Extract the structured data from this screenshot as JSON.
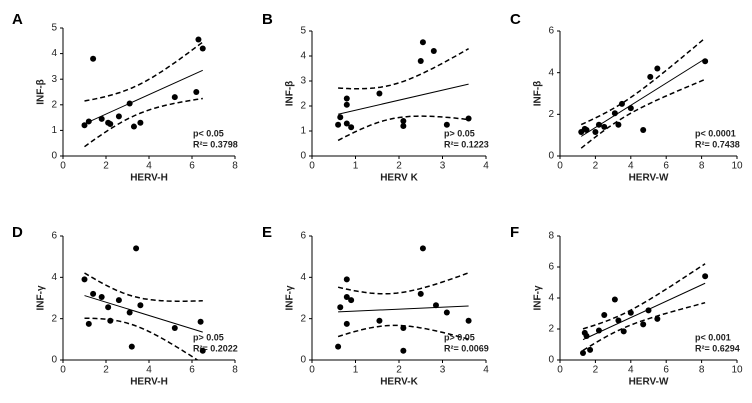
{
  "chart_data": [
    {
      "type": "scatter",
      "panel": "A",
      "xlabel": "HERV-H",
      "ylabel": "INF-β",
      "annotations": [
        "p< 0.05",
        "R²= 0.3798"
      ],
      "x": [
        1.0,
        1.2,
        1.4,
        1.8,
        2.1,
        2.2,
        2.6,
        3.1,
        3.3,
        3.6,
        5.2,
        6.2,
        6.3,
        6.5
      ],
      "y": [
        1.2,
        1.35,
        3.8,
        1.45,
        1.3,
        1.25,
        1.55,
        2.05,
        1.15,
        1.3,
        2.3,
        2.5,
        4.55,
        4.2
      ],
      "xlim": [
        0,
        8
      ],
      "ylim": [
        0,
        5
      ],
      "xticks": [
        0,
        2,
        4,
        6,
        8
      ],
      "yticks": [
        0,
        1,
        2,
        3,
        4,
        5
      ],
      "color": "#000000"
    },
    {
      "type": "scatter",
      "panel": "B",
      "xlabel": "HERV K",
      "ylabel": "INF-β",
      "annotations": [
        "p> 0.05",
        "R²= 0.1223"
      ],
      "x": [
        0.6,
        0.65,
        0.8,
        0.8,
        0.8,
        0.9,
        1.55,
        2.1,
        2.1,
        2.5,
        2.55,
        2.8,
        3.1,
        3.6
      ],
      "y": [
        1.25,
        1.55,
        2.05,
        2.3,
        1.3,
        1.15,
        2.5,
        1.4,
        1.2,
        3.8,
        4.55,
        4.2,
        1.25,
        1.5
      ],
      "xlim": [
        0,
        4
      ],
      "ylim": [
        0,
        5
      ],
      "xticks": [
        0,
        1,
        2,
        3,
        4
      ],
      "yticks": [
        0,
        1,
        2,
        3,
        4,
        5
      ],
      "color": "#000000"
    },
    {
      "type": "scatter",
      "panel": "C",
      "xlabel": "HERV-W",
      "ylabel": "INF-β",
      "annotations": [
        "p< 0.0001",
        "R²= 0.7438"
      ],
      "x": [
        1.2,
        1.4,
        1.5,
        2.0,
        2.2,
        2.5,
        3.1,
        3.3,
        3.5,
        4.0,
        4.7,
        5.1,
        5.5,
        8.2
      ],
      "y": [
        1.15,
        1.3,
        1.25,
        1.15,
        1.5,
        1.4,
        2.05,
        1.5,
        2.5,
        2.3,
        1.25,
        3.8,
        4.2,
        4.55
      ],
      "xlim": [
        0,
        10
      ],
      "ylim": [
        0,
        6
      ],
      "xticks": [
        0,
        2,
        4,
        6,
        8,
        10
      ],
      "yticks": [
        0,
        2,
        4,
        6
      ],
      "color": "#000000"
    },
    {
      "type": "scatter",
      "panel": "D",
      "xlabel": "HERV-H",
      "ylabel": "INF-γ",
      "annotations": [
        "p> 0.05",
        "R²= 0.2022"
      ],
      "x": [
        1.0,
        1.2,
        1.4,
        1.8,
        2.1,
        2.2,
        2.6,
        3.1,
        3.2,
        3.4,
        3.6,
        5.2,
        6.4,
        6.5
      ],
      "y": [
        3.9,
        1.75,
        3.2,
        3.05,
        2.55,
        1.9,
        2.9,
        2.3,
        0.65,
        5.4,
        2.65,
        1.55,
        1.85,
        0.45
      ],
      "xlim": [
        0,
        8
      ],
      "ylim": [
        0,
        6
      ],
      "xticks": [
        0,
        2,
        4,
        6,
        8
      ],
      "yticks": [
        0,
        2,
        4,
        6
      ],
      "color": "#000000"
    },
    {
      "type": "scatter",
      "panel": "E",
      "xlabel": "HERV-K",
      "ylabel": "INF-γ",
      "annotations": [
        "p> 0.05",
        "R²= 0.0069"
      ],
      "x": [
        0.6,
        0.65,
        0.8,
        0.8,
        0.8,
        0.9,
        1.55,
        2.1,
        2.1,
        2.5,
        2.55,
        2.85,
        3.1,
        3.6
      ],
      "y": [
        0.65,
        2.55,
        1.75,
        3.9,
        3.05,
        2.9,
        1.9,
        1.55,
        0.45,
        3.2,
        5.4,
        2.65,
        2.3,
        1.9
      ],
      "xlim": [
        0,
        4
      ],
      "ylim": [
        0,
        6
      ],
      "xticks": [
        0,
        1,
        2,
        3,
        4
      ],
      "yticks": [
        0,
        2,
        4,
        6
      ],
      "color": "#000000"
    },
    {
      "type": "scatter",
      "panel": "F",
      "xlabel": "HERV-W",
      "ylabel": "INF-γ",
      "annotations": [
        "p< 0.001",
        "R²= 0.6294"
      ],
      "x": [
        1.3,
        1.4,
        1.5,
        1.7,
        2.2,
        2.5,
        3.1,
        3.3,
        3.6,
        4.0,
        4.7,
        5.0,
        5.5,
        8.2
      ],
      "y": [
        0.45,
        1.75,
        1.55,
        0.65,
        1.9,
        2.9,
        3.9,
        2.55,
        1.85,
        3.05,
        2.3,
        3.2,
        2.65,
        5.4
      ],
      "xlim": [
        0,
        10
      ],
      "ylim": [
        0,
        8
      ],
      "xticks": [
        0,
        2,
        4,
        6,
        8,
        10
      ],
      "yticks": [
        0,
        2,
        4,
        6,
        8
      ],
      "color": "#000000"
    }
  ]
}
